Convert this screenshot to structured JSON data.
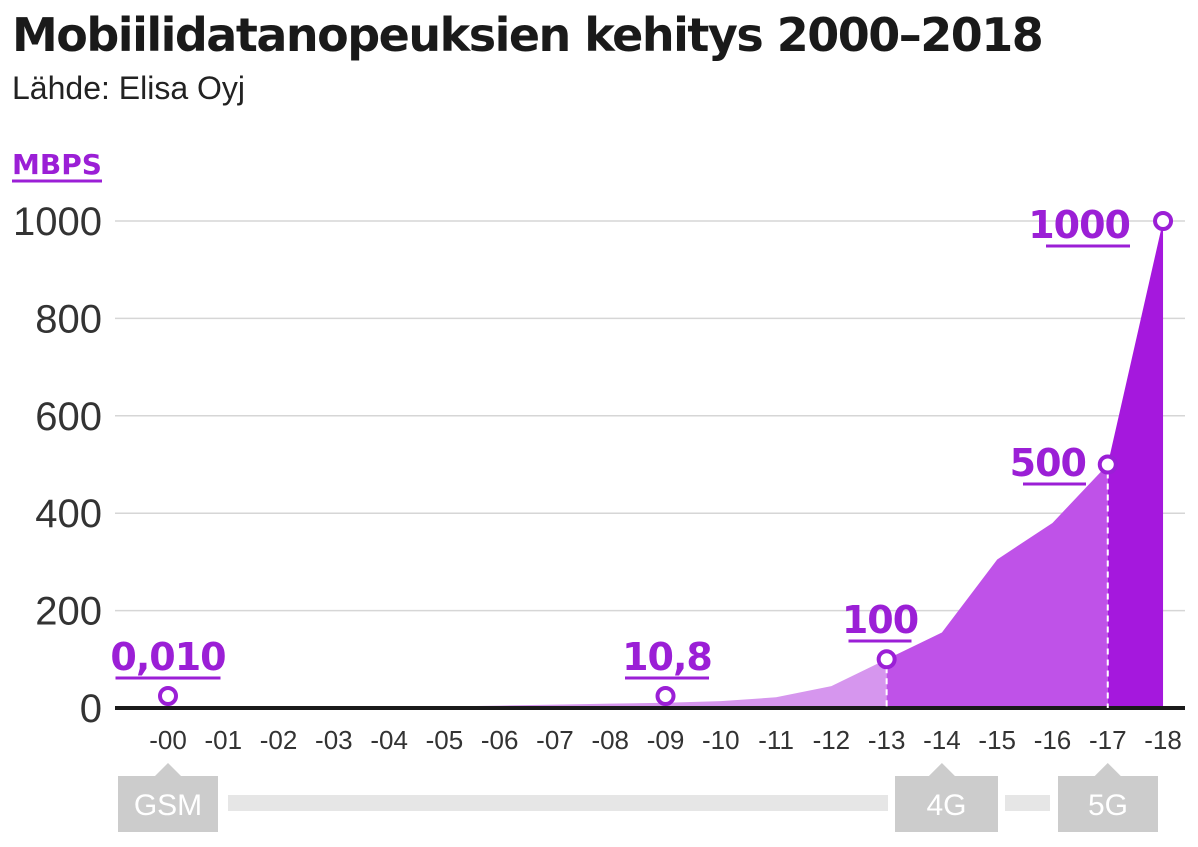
{
  "header": {
    "title": "Mobiilidatanopeuksien kehitys 2000–2018",
    "source": "Lähde: Elisa Oyj"
  },
  "colors": {
    "accent": "#9b1fd6",
    "area_light": "#d696ee",
    "area_mid": "#bf52e8",
    "area_dark": "#a518dd",
    "grid": "#d6d6d6",
    "axis": "#1a1a1a",
    "badge": "#cccccc",
    "timeline_bar": "#e6e6e6"
  },
  "chart_data": {
    "type": "area",
    "ylabel": "MBPS",
    "ylim": [
      0,
      1000
    ],
    "yticks": [
      0,
      200,
      400,
      600,
      800,
      1000
    ],
    "categories": [
      "-00",
      "-01",
      "-02",
      "-03",
      "-04",
      "-05",
      "-06",
      "-07",
      "-08",
      "-09",
      "-10",
      "-11",
      "-12",
      "-13",
      "-14",
      "-15",
      "-16",
      "-17",
      "-18"
    ],
    "values": [
      0.01,
      0.2,
      0.5,
      1,
      2,
      3,
      5,
      7,
      9,
      10.8,
      14,
      22,
      45,
      100,
      155,
      305,
      380,
      500,
      1000
    ],
    "annotations": [
      {
        "index": 0,
        "label": "0,010"
      },
      {
        "index": 9,
        "label": "10,8"
      },
      {
        "index": 13,
        "label": "100"
      },
      {
        "index": 17,
        "label": "500"
      },
      {
        "index": 18,
        "label": "1000"
      }
    ],
    "technologies": [
      {
        "label": "GSM",
        "index": 0
      },
      {
        "label": "4G",
        "index": 14
      },
      {
        "label": "5G",
        "index": 17
      }
    ]
  }
}
